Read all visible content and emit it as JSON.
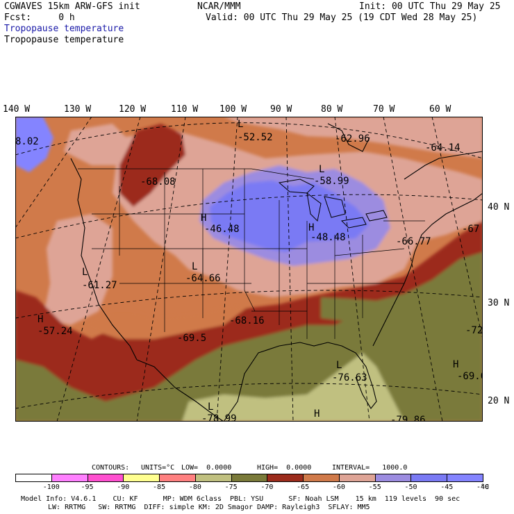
{
  "header": {
    "model": "CGWAVES 15km ARW-GFS init",
    "fcst": "Fcst:     0 h",
    "org": "NCAR/MMM",
    "init": "Init: 00 UTC Thu 29 May 25",
    "valid": "Valid: 00 UTC Thu 29 May 25 (19 CDT Wed 28 May 25)",
    "field_blue": "Tropopause temperature",
    "field_black": "Tropopause temperature"
  },
  "lon_labels": [
    "140 W",
    "130 W",
    "120 W",
    "110 W",
    "100 W",
    "90 W",
    "80 W",
    "70 W",
    "60 W"
  ],
  "lat_labels": [
    "40 N",
    "30 N",
    "20 N"
  ],
  "extrema": [
    {
      "type": "",
      "value": "8.02"
    },
    {
      "type": "L",
      "value": "-52.52"
    },
    {
      "type": "",
      "value": "-62.96"
    },
    {
      "type": "",
      "value": "-64.14"
    },
    {
      "type": "",
      "value": "-68.08"
    },
    {
      "type": "L",
      "value": "-58.99"
    },
    {
      "type": "H",
      "value": "-46.48"
    },
    {
      "type": "H",
      "value": "-48.48"
    },
    {
      "type": "",
      "value": "-67"
    },
    {
      "type": "",
      "value": "-66.77"
    },
    {
      "type": "L",
      "value": "-64.66"
    },
    {
      "type": "L",
      "value": "-61.27"
    },
    {
      "type": "H",
      "value": "-57.24"
    },
    {
      "type": "",
      "value": "-68.16"
    },
    {
      "type": "",
      "value": "-69.5"
    },
    {
      "type": "",
      "value": "-72"
    },
    {
      "type": "L",
      "value": "-76.63"
    },
    {
      "type": "H",
      "value": "-69.0"
    },
    {
      "type": "L",
      "value": "-78.99"
    },
    {
      "type": "H",
      "value": ""
    },
    {
      "type": "",
      "value": "-79.86"
    }
  ],
  "contour_info": {
    "contours": "CONTOURS:",
    "units": "UNITS=°C",
    "low": "LOW=  0.0000",
    "high": "HIGH=  0.0000",
    "interval": "INTERVAL=   1000.0"
  },
  "colorbar": {
    "colors": [
      "#ffffff",
      "#ff80ff",
      "#ff50d0",
      "#ffff90",
      "#ff8080",
      "#c0c080",
      "#7a7a3a",
      "#9c2c1c",
      "#d07a4a",
      "#dea496",
      "#9c8ce0",
      "#7a7af4",
      "#8484ff"
    ],
    "ticks": [
      "-100",
      "-95",
      "-90",
      "-85",
      "-80",
      "-75",
      "-70",
      "-65",
      "-60",
      "-55",
      "-50",
      "-45",
      "-40"
    ],
    "unit": "°C"
  },
  "model_info": {
    "line1": "Model Info: V4.6.1    CU: KF      MP: WDM 6class  PBL: YSU      SF: Noah LSM    15 km  119 levels  90 sec",
    "line2": "LW: RRTMG   SW: RRTMG  DIFF: simple KM: 2D Smagor DAMP: Rayleigh3  SFLAY: MM5"
  },
  "colors": {
    "olive": "#7a7a3a",
    "dark_red": "#9c2c1c",
    "orange": "#d07a4a",
    "pink": "#dea496",
    "lavender": "#9c8ce0",
    "blue": "#7a7af4",
    "light_olive": "#c0c080"
  }
}
